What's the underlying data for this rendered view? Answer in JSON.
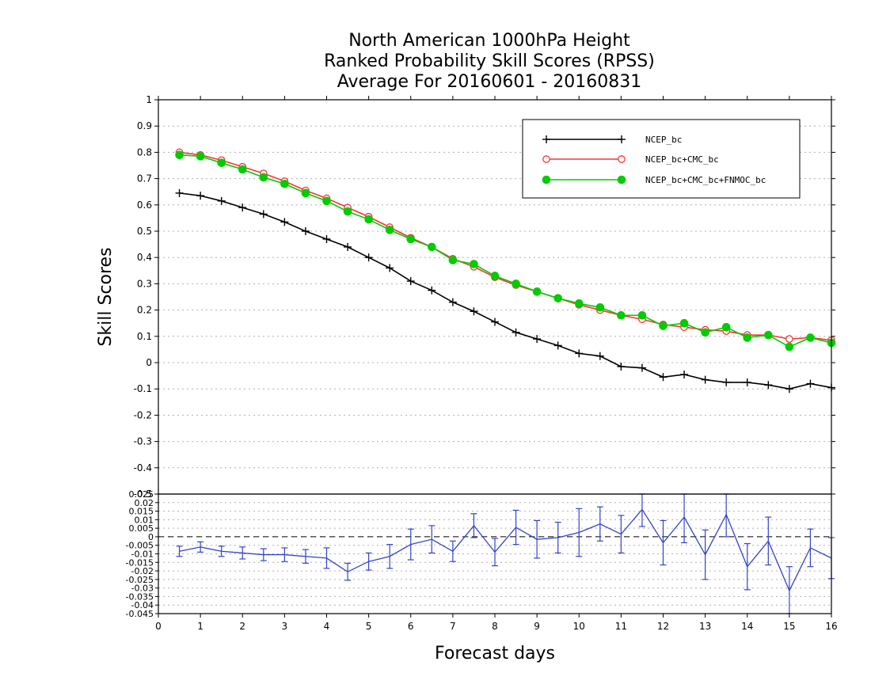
{
  "chart_data": [
    {
      "type": "line",
      "title": [
        "North American 1000hPa Height",
        "Ranked Probability Skill Scores (RPSS)",
        "Average For 20160601 - 20160831"
      ],
      "ylabel": "Skill Scores",
      "xlabel": "Forecast days",
      "xlim": [
        0,
        16
      ],
      "ylim": [
        -0.5,
        1.0
      ],
      "x_ticks": [
        "0",
        "1",
        "2",
        "3",
        "4",
        "5",
        "6",
        "7",
        "8",
        "9",
        "10",
        "11",
        "12",
        "13",
        "14",
        "15",
        "16"
      ],
      "y_ticks": [
        "-0.5",
        "-0.4",
        "-0.3",
        "-0.2",
        "-0.1",
        "0",
        "0.1",
        "0.2",
        "0.3",
        "0.4",
        "0.5",
        "0.6",
        "0.7",
        "0.8",
        "0.9",
        "1"
      ],
      "grid": true,
      "legend_position": "top-right",
      "x": [
        0.5,
        1,
        1.5,
        2,
        2.5,
        3,
        3.5,
        4,
        4.5,
        5,
        5.5,
        6,
        6.5,
        7,
        7.5,
        8,
        8.5,
        9,
        9.5,
        10,
        10.5,
        11,
        11.5,
        12,
        12.5,
        13,
        13.5,
        14,
        14.5,
        15,
        15.5,
        16
      ],
      "series": [
        {
          "name": "NCEP_bc",
          "color": "#000000",
          "marker": "plus",
          "values": [
            0.645,
            0.635,
            0.615,
            0.59,
            0.565,
            0.535,
            0.5,
            0.47,
            0.44,
            0.4,
            0.36,
            0.31,
            0.275,
            0.23,
            0.195,
            0.155,
            0.115,
            0.09,
            0.065,
            0.035,
            0.025,
            -0.015,
            -0.02,
            -0.055,
            -0.045,
            -0.065,
            -0.075,
            -0.075,
            -0.085,
            -0.1,
            -0.08,
            -0.095
          ]
        },
        {
          "name": "NCEP_bc+CMC_bc",
          "color": "#ff3333",
          "marker": "open-circle",
          "values": [
            0.8,
            0.79,
            0.77,
            0.745,
            0.72,
            0.69,
            0.655,
            0.625,
            0.59,
            0.555,
            0.515,
            0.475,
            0.44,
            0.395,
            0.365,
            0.325,
            0.295,
            0.27,
            0.245,
            0.22,
            0.2,
            0.18,
            0.165,
            0.145,
            0.135,
            0.125,
            0.12,
            0.105,
            0.105,
            0.09,
            0.095,
            0.085
          ]
        },
        {
          "name": "NCEP_bc+CMC_bc+FNMOC_bc",
          "color": "#00cc00",
          "marker": "filled-circle",
          "values": [
            0.79,
            0.785,
            0.76,
            0.735,
            0.705,
            0.68,
            0.645,
            0.615,
            0.575,
            0.545,
            0.505,
            0.47,
            0.44,
            0.39,
            0.375,
            0.33,
            0.3,
            0.27,
            0.245,
            0.225,
            0.21,
            0.18,
            0.18,
            0.14,
            0.15,
            0.115,
            0.135,
            0.095,
            0.105,
            0.06,
            0.095,
            0.075
          ]
        }
      ]
    },
    {
      "type": "line",
      "xlim": [
        0,
        16
      ],
      "ylim": [
        -0.045,
        0.025
      ],
      "y_ticks": [
        "-0.045",
        "-0.04",
        "-0.035",
        "-0.03",
        "-0.025",
        "-0.02",
        "-0.015",
        "-0.01",
        "-0.005",
        "0",
        "0.005",
        "0.01",
        "0.015",
        "0.02",
        "0.025"
      ],
      "grid": true,
      "reference_line": 0,
      "x": [
        0.5,
        1,
        1.5,
        2,
        2.5,
        3,
        3.5,
        4,
        4.5,
        5,
        5.5,
        6,
        6.5,
        7,
        7.5,
        8,
        8.5,
        9,
        9.5,
        10,
        10.5,
        11,
        11.5,
        12,
        12.5,
        13,
        13.5,
        14,
        14.5,
        15,
        15.5,
        16
      ],
      "series": [
        {
          "color": "#3344cc",
          "marker": "errorbar",
          "values": [
            -0.0085,
            -0.006,
            -0.0085,
            -0.0095,
            -0.0105,
            -0.0105,
            -0.0115,
            -0.0125,
            -0.0205,
            -0.0145,
            -0.0115,
            -0.0045,
            -0.0015,
            -0.0085,
            0.0065,
            -0.009,
            0.0055,
            -0.0015,
            -0.0005,
            0.0025,
            0.0075,
            0.0015,
            0.016,
            -0.0035,
            0.0115,
            -0.0105,
            0.013,
            -0.0175,
            -0.0025,
            -0.0315,
            -0.0065,
            -0.0125
          ],
          "errors": [
            0.003,
            0.003,
            0.003,
            0.0035,
            0.0035,
            0.004,
            0.004,
            0.006,
            0.005,
            0.005,
            0.007,
            0.009,
            0.008,
            0.006,
            0.007,
            0.008,
            0.01,
            0.011,
            0.009,
            0.014,
            0.01,
            0.011,
            0.01,
            0.013,
            0.015,
            0.0145,
            0.013,
            0.0135,
            0.014,
            0.014,
            0.011,
            0.012
          ]
        }
      ]
    }
  ]
}
